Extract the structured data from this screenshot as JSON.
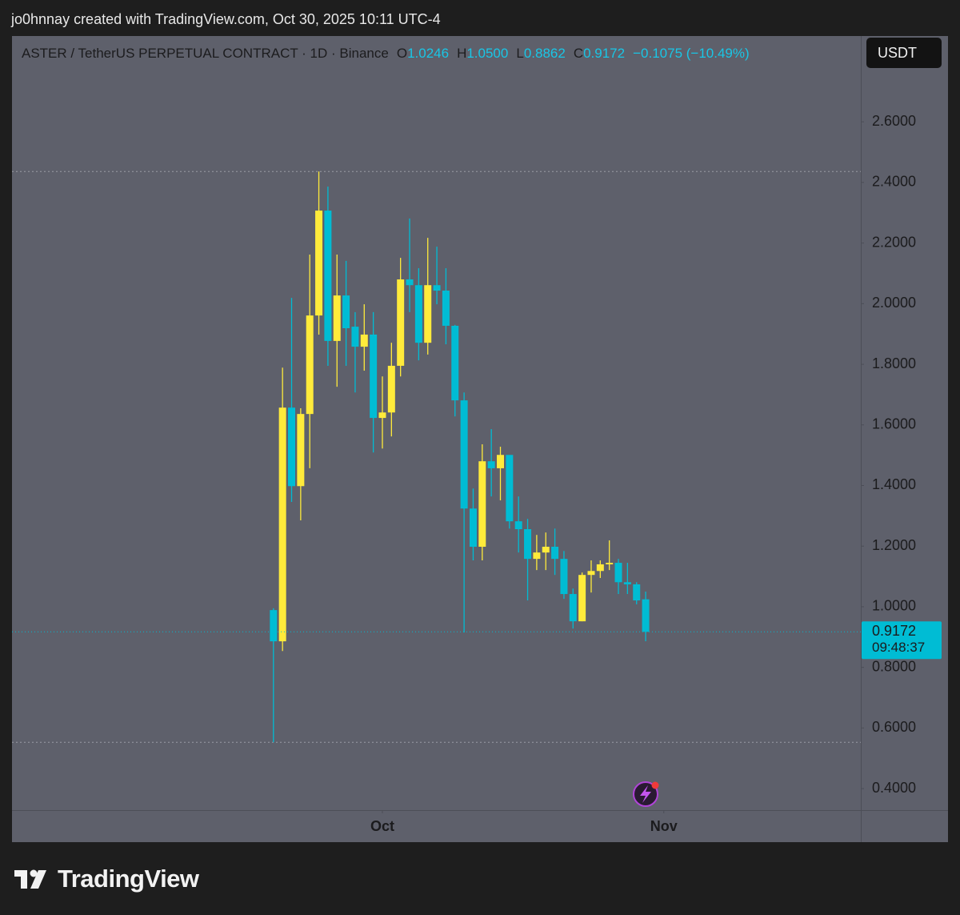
{
  "header": {
    "attribution": "jo0hnnay created with TradingView.com, Oct 30, 2025 10:11 UTC-4"
  },
  "chart_data": {
    "type": "candlestick",
    "title": "ASTER / TetherUS PERPETUAL CONTRACT · 1D · Binance",
    "legend": {
      "open_label": "O",
      "open": "1.0246",
      "high_label": "H",
      "high": "1.0500",
      "low_label": "L",
      "low": "0.8862",
      "close_label": "C",
      "close": "0.9172",
      "change": "−0.1075 (−10.49%)"
    },
    "currency": "USDT",
    "countdown": "09:48:37",
    "up_color": "#ffeb3b",
    "down_color": "#00bcd4",
    "grid": false,
    "x": [
      0,
      1,
      2,
      3,
      4,
      5,
      6,
      7,
      8,
      9,
      10,
      11,
      12,
      13,
      14,
      15,
      16,
      17,
      18,
      19,
      20,
      21,
      22,
      23,
      24,
      25,
      26,
      27,
      28,
      29,
      30,
      31,
      32,
      33,
      34,
      35,
      36,
      37,
      38,
      39,
      40,
      41
    ],
    "open": [
      0.989,
      0.886,
      1.657,
      1.398,
      1.636,
      1.961,
      2.307,
      1.877,
      2.027,
      1.924,
      1.858,
      1.898,
      1.623,
      1.641,
      1.795,
      2.08,
      2.061,
      1.871,
      2.061,
      2.043,
      1.927,
      1.681,
      1.324,
      1.198,
      1.48,
      1.457,
      1.501,
      1.282,
      1.256,
      1.158,
      1.179,
      1.198,
      1.158,
      1.042,
      0.952,
      1.105,
      1.118,
      1.14,
      1.145,
      1.081,
      1.074,
      1.0246
    ],
    "high": [
      0.995,
      1.789,
      2.019,
      1.655,
      2.162,
      2.436,
      2.386,
      2.162,
      2.141,
      1.972,
      1.998,
      1.972,
      1.76,
      1.871,
      2.151,
      2.281,
      2.117,
      2.217,
      2.188,
      2.117,
      1.93,
      1.707,
      1.39,
      1.536,
      1.586,
      1.528,
      1.5,
      1.364,
      1.29,
      1.237,
      1.245,
      1.258,
      1.184,
      1.06,
      1.113,
      1.153,
      1.153,
      1.219,
      1.158,
      1.145,
      1.081,
      1.05
    ],
    "low": [
      0.553,
      0.854,
      1.346,
      1.285,
      1.457,
      1.898,
      1.795,
      1.726,
      1.795,
      1.707,
      1.779,
      1.509,
      1.522,
      1.562,
      1.76,
      1.972,
      1.813,
      1.832,
      1.998,
      1.866,
      1.628,
      0.915,
      1.153,
      1.153,
      1.364,
      1.351,
      1.258,
      1.179,
      1.021,
      1.121,
      1.121,
      1.105,
      1.026,
      0.928,
      0.952,
      1.047,
      1.095,
      1.121,
      1.042,
      1.042,
      1.008,
      0.8862
    ],
    "close": [
      0.886,
      1.657,
      1.398,
      1.636,
      1.961,
      2.307,
      1.877,
      2.027,
      1.919,
      1.858,
      1.898,
      1.623,
      1.641,
      1.795,
      2.08,
      2.061,
      1.871,
      2.061,
      2.043,
      1.927,
      1.681,
      1.324,
      1.198,
      1.48,
      1.457,
      1.501,
      1.282,
      1.256,
      1.158,
      1.179,
      1.198,
      1.158,
      1.042,
      0.952,
      1.105,
      1.118,
      1.14,
      1.145,
      1.081,
      1.074,
      1.021,
      0.9172
    ],
    "ylim": [
      0.329,
      2.883
    ],
    "yticks": [
      {
        "value": 0.4,
        "label": "0.4000"
      },
      {
        "value": 0.6,
        "label": "0.6000"
      },
      {
        "value": 0.8,
        "label": "0.8000"
      },
      {
        "value": 1.0,
        "label": "1.0000"
      },
      {
        "value": 1.2,
        "label": "1.2000"
      },
      {
        "value": 1.4,
        "label": "1.4000"
      },
      {
        "value": 1.6,
        "label": "1.6000"
      },
      {
        "value": 1.8,
        "label": "1.8000"
      },
      {
        "value": 2.0,
        "label": "2.0000"
      },
      {
        "value": 2.2,
        "label": "2.2000"
      },
      {
        "value": 2.4,
        "label": "2.4000"
      },
      {
        "value": 2.6,
        "label": "2.6000"
      }
    ],
    "xlim": [
      -28.8,
      64.7
    ],
    "xticks": [
      {
        "value": 12,
        "label": "Oct"
      },
      {
        "value": 43,
        "label": "Nov"
      }
    ]
  },
  "footer": {
    "brand": "TradingView"
  }
}
